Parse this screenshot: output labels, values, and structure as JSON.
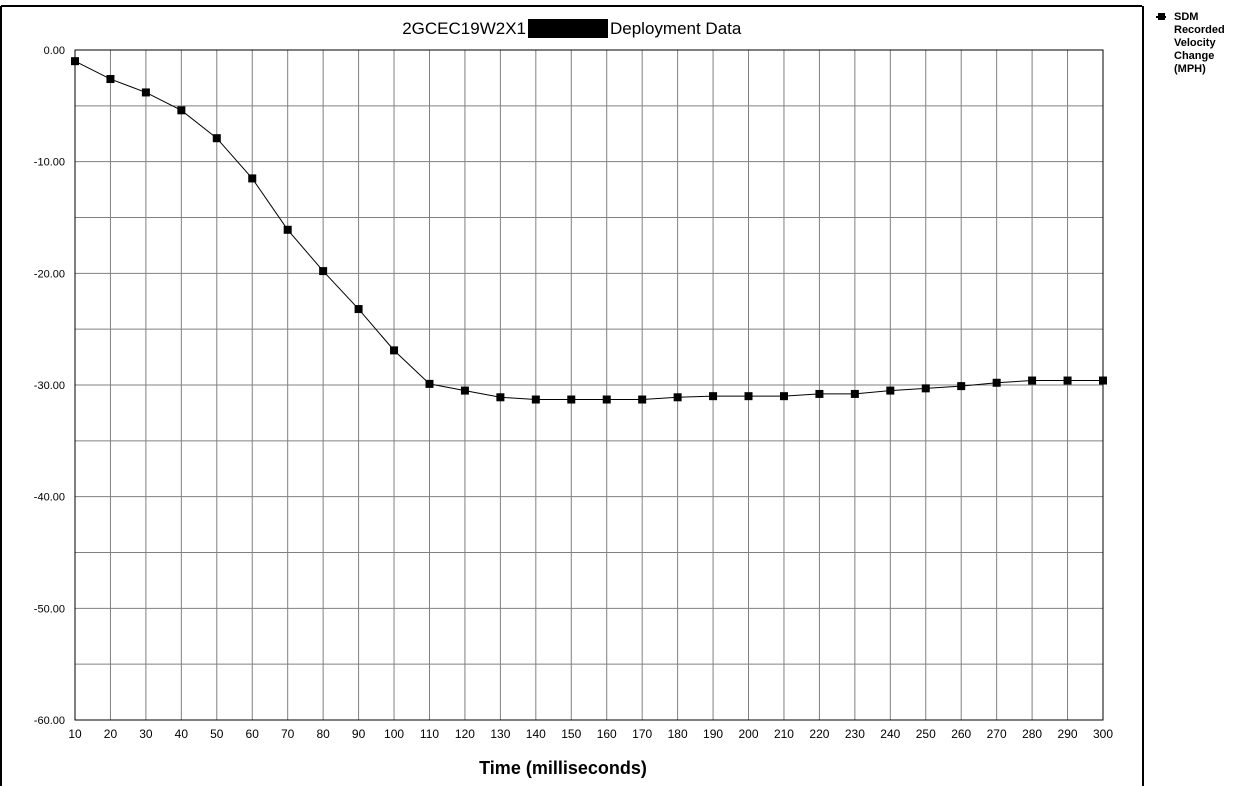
{
  "chart_data": {
    "type": "line",
    "title_prefix": "2GCEC19W2X1",
    "title_suffix": "Deployment Data",
    "xlabel": "Time (milliseconds)",
    "ylabel": "",
    "x": [
      10,
      20,
      30,
      40,
      50,
      60,
      70,
      80,
      90,
      100,
      110,
      120,
      130,
      140,
      150,
      160,
      170,
      180,
      190,
      200,
      210,
      220,
      230,
      240,
      250,
      260,
      270,
      280,
      290,
      300
    ],
    "series": [
      {
        "name": "SDM Recorded Velocity Change (MPH)",
        "values": [
          -1.0,
          -2.6,
          -3.8,
          -5.4,
          -7.9,
          -11.5,
          -16.1,
          -19.8,
          -23.2,
          -26.9,
          -29.9,
          -30.5,
          -31.1,
          -31.3,
          -31.3,
          -31.3,
          -31.3,
          -31.1,
          -31.0,
          -31.0,
          -31.0,
          -30.8,
          -30.8,
          -30.5,
          -30.3,
          -30.1,
          -29.8,
          -29.6,
          -29.6,
          -29.6
        ],
        "color": "#000000",
        "marker": "square"
      }
    ],
    "xlim": [
      10,
      300
    ],
    "ylim": [
      -60,
      0
    ],
    "yticks": [
      0,
      -10,
      -20,
      -30,
      -40,
      -50,
      -60
    ],
    "ytick_labels": [
      "0.00",
      "-10.00",
      "-20.00",
      "-30.00",
      "-40.00",
      "-50.00",
      "-60.00"
    ],
    "xtick_labels": [
      "10",
      "20",
      "30",
      "40",
      "50",
      "60",
      "70",
      "80",
      "90",
      "100",
      "110",
      "120",
      "130",
      "140",
      "150",
      "160",
      "170",
      "180",
      "190",
      "200",
      "210",
      "220",
      "230",
      "240",
      "250",
      "260",
      "270",
      "280",
      "290",
      "300"
    ],
    "grid": true,
    "legend_position": "right",
    "redaction_color": "#000000",
    "grid_color": "#808080"
  }
}
